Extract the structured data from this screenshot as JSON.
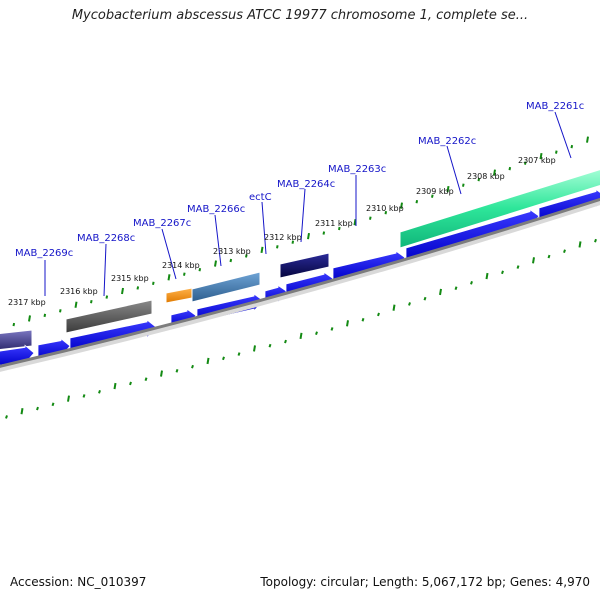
{
  "title": "Mycobacterium abscessus ATCC 19977 chromosome 1, complete se...",
  "footer": {
    "accession": "Accession: NC_010397",
    "summary": "Topology: circular; Length: 5,067,172 bp; Genes: 4,970"
  },
  "map": {
    "unit": "kbp",
    "ticks": [
      {
        "value": 2317,
        "label": "2317 kbp"
      },
      {
        "value": 2316,
        "label": "2316 kbp"
      },
      {
        "value": 2315,
        "label": "2315 kbp"
      },
      {
        "value": 2314,
        "label": "2314 kbp"
      },
      {
        "value": 2313,
        "label": "2313 kbp"
      },
      {
        "value": 2312,
        "label": "2312 kbp"
      },
      {
        "value": 2311,
        "label": "2311 kbp"
      },
      {
        "value": 2310,
        "label": "2310 kbp"
      },
      {
        "value": 2309,
        "label": "2309 kbp"
      },
      {
        "value": 2308,
        "label": "2308 kbp"
      },
      {
        "value": 2307,
        "label": "2307 kbp"
      }
    ],
    "genes": [
      {
        "name": "MAB_2269c"
      },
      {
        "name": "MAB_2268c"
      },
      {
        "name": "MAB_2267c"
      },
      {
        "name": "MAB_2266c"
      },
      {
        "name": "ectC"
      },
      {
        "name": "MAB_2264c"
      },
      {
        "name": "MAB_2263c"
      },
      {
        "name": "MAB_2262c"
      },
      {
        "name": "MAB_2261c"
      }
    ],
    "colors": {
      "cds": "#0a0af0",
      "tick": "#138a13",
      "backbone": "#808080",
      "gene_label": "#1515c8"
    }
  }
}
